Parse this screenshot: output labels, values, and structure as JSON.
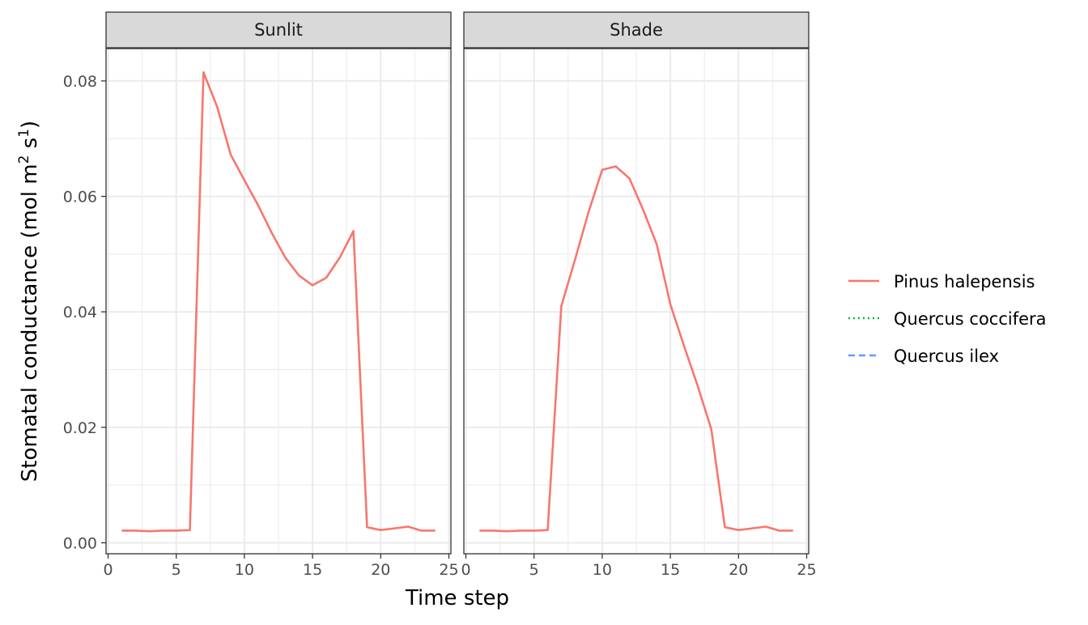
{
  "chart_data": {
    "type": "line",
    "facets": [
      {
        "label": "Sunlit",
        "series": [
          {
            "name": "Pinus halepensis",
            "x": [
              1,
              2,
              3,
              4,
              5,
              6,
              7,
              8,
              9,
              10,
              11,
              12,
              13,
              14,
              15,
              16,
              17,
              18,
              19,
              20,
              21,
              22,
              23,
              24
            ],
            "y": [
              0.0021,
              0.0021,
              0.002,
              0.0021,
              0.0021,
              0.0022,
              0.0815,
              0.0755,
              0.0672,
              0.0628,
              0.0585,
              0.0537,
              0.0494,
              0.0463,
              0.0446,
              0.0459,
              0.0494,
              0.054,
              0.0027,
              0.0022,
              0.0025,
              0.0028,
              0.0021,
              0.0021
            ]
          },
          {
            "name": "Quercus coccifera",
            "x": [],
            "y": []
          },
          {
            "name": "Quercus ilex",
            "x": [],
            "y": []
          }
        ]
      },
      {
        "label": "Shade",
        "series": [
          {
            "name": "Pinus halepensis",
            "x": [
              1,
              2,
              3,
              4,
              5,
              6,
              7,
              8,
              9,
              10,
              11,
              12,
              13,
              14,
              15,
              16,
              17,
              18,
              19,
              20,
              21,
              22,
              23,
              24
            ],
            "y": [
              0.0021,
              0.0021,
              0.002,
              0.0021,
              0.0021,
              0.0022,
              0.041,
              0.049,
              0.0573,
              0.0646,
              0.0652,
              0.0631,
              0.0577,
              0.0517,
              0.0413,
              0.0341,
              0.0272,
              0.0197,
              0.0027,
              0.0022,
              0.0025,
              0.0028,
              0.0021,
              0.0021
            ]
          },
          {
            "name": "Quercus coccifera",
            "x": [],
            "y": []
          },
          {
            "name": "Quercus ilex",
            "x": [],
            "y": []
          }
        ]
      }
    ],
    "xlabel": "Time step",
    "ylabel": "Stomatal conductance (mol  m",
    "ylabel_sup1": "2",
    "ylabel_mid": "  s",
    "ylabel_sup2": "1",
    "ylabel_end": ")",
    "xlim": [
      -0.15,
      25.15
    ],
    "ylim": [
      -0.0019,
      0.0856
    ],
    "x_ticks": [
      0,
      5,
      10,
      15,
      20,
      25
    ],
    "y_ticks": [
      0.0,
      0.02,
      0.04,
      0.06,
      0.08
    ],
    "x_tick_labels": [
      "0",
      "5",
      "10",
      "15",
      "20",
      "25"
    ],
    "y_tick_labels": [
      "0.00",
      "0.02",
      "0.04",
      "0.06",
      "0.08"
    ],
    "grid": true,
    "legend_position": "right",
    "legend": [
      {
        "name": "Pinus halepensis",
        "color": "#F8766D",
        "dash": "solid"
      },
      {
        "name": "Quercus coccifera",
        "color": "#00BA38",
        "dash": "dotted"
      },
      {
        "name": "Quercus ilex",
        "color": "#619CFF",
        "dash": "dashed"
      }
    ]
  }
}
